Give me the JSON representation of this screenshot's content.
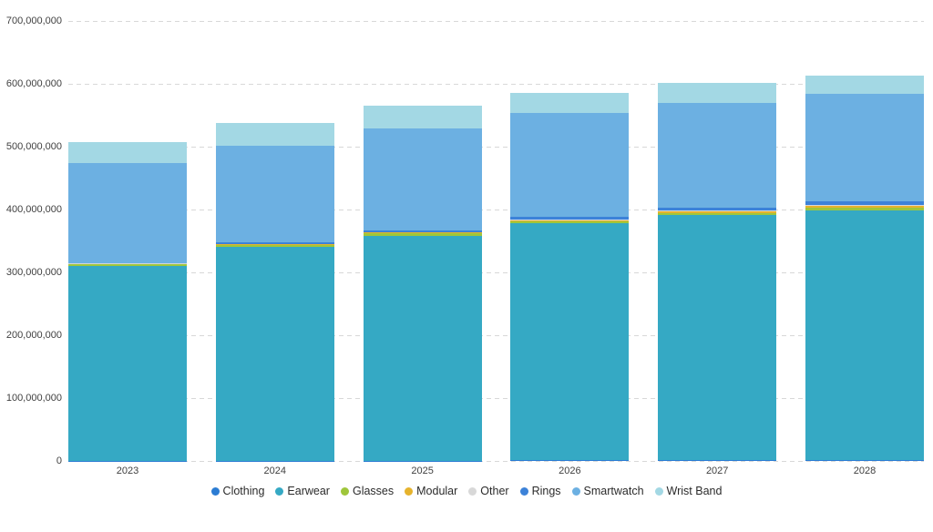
{
  "chart_data": {
    "type": "bar",
    "stacked": true,
    "title": "",
    "xlabel": "",
    "ylabel": "",
    "categories": [
      "2023",
      "2024",
      "2025",
      "2026",
      "2027",
      "2028"
    ],
    "series": [
      {
        "name": "Clothing",
        "color": "#2b7cd3",
        "values": [
          500000,
          600000,
          700000,
          800000,
          900000,
          1000000
        ]
      },
      {
        "name": "Earwear",
        "color": "#35a9c4",
        "values": [
          310000000,
          340000000,
          358000000,
          377000000,
          390000000,
          398000000
        ]
      },
      {
        "name": "Glasses",
        "color": "#9fc63b",
        "values": [
          2000000,
          2500000,
          3000000,
          3000000,
          3500000,
          4000000
        ]
      },
      {
        "name": "Modular",
        "color": "#e6b32d",
        "values": [
          1000000,
          1500000,
          2000000,
          2500000,
          3000000,
          3500000
        ]
      },
      {
        "name": "Other",
        "color": "#d8d8d8",
        "values": [
          500000,
          600000,
          700000,
          800000,
          900000,
          1000000
        ]
      },
      {
        "name": "Rings",
        "color": "#3c82d8",
        "values": [
          1000000,
          2000000,
          3000000,
          4000000,
          5000000,
          6000000
        ]
      },
      {
        "name": "Smartwatch",
        "color": "#6cb0e2",
        "values": [
          159000000,
          155000000,
          162000000,
          165000000,
          167000000,
          170000000
        ]
      },
      {
        "name": "Wrist Band",
        "color": "#a3d8e4",
        "values": [
          33000000,
          35000000,
          36000000,
          33000000,
          31000000,
          30000000
        ]
      }
    ],
    "ylim": [
      0,
      700000000
    ],
    "yticks": [
      {
        "value": 0,
        "label": "0"
      },
      {
        "value": 100000000,
        "label": "100,000,000"
      },
      {
        "value": 200000000,
        "label": "200,000,000"
      },
      {
        "value": 300000000,
        "label": "300,000,000"
      },
      {
        "value": 400000000,
        "label": "400,000,000"
      },
      {
        "value": 500000000,
        "label": "500,000,000"
      },
      {
        "value": 600000000,
        "label": "600,000,000"
      },
      {
        "value": 700000000,
        "label": "700,000,000"
      }
    ],
    "grid": "horizontal-dashed",
    "legend_position": "bottom"
  }
}
